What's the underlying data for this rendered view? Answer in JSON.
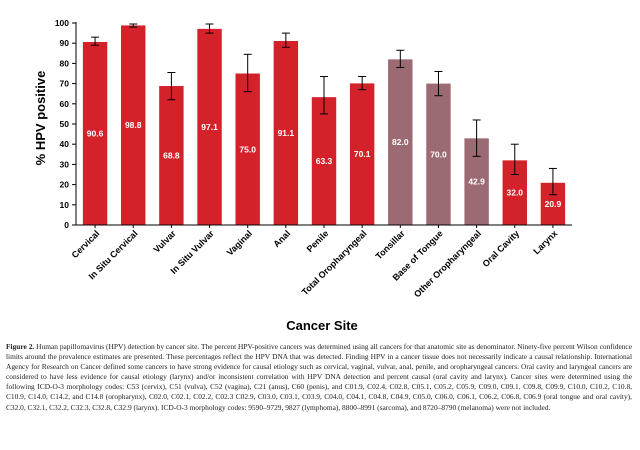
{
  "chart_data": {
    "type": "bar",
    "xlabel": "Cancer Site",
    "ylabel": "% HPV positive",
    "ylim": [
      0,
      100
    ],
    "yticks": [
      0,
      10,
      20,
      30,
      40,
      50,
      60,
      70,
      80,
      90,
      100
    ],
    "grid": false,
    "categories": [
      "Cervical",
      "In Situ Cervical",
      "Vulvar",
      "In Situ Vulvar",
      "Vaginal",
      "Anal",
      "Penile",
      "Total Oropharyngeal",
      "Tonsillar",
      "Base of Tongue",
      "Other Oropharyngeal",
      "Oral Cavity",
      "Larynx"
    ],
    "values": [
      90.6,
      98.8,
      68.8,
      97.1,
      75.0,
      91.1,
      63.3,
      70.1,
      82.0,
      70.0,
      42.9,
      32.0,
      20.9
    ],
    "value_labels": [
      "90.6",
      "98.8",
      "68.8",
      "97.1",
      "75.0",
      "91.1",
      "63.3",
      "70.1",
      "82.0",
      "70.0",
      "42.9",
      "32.0",
      "20.9"
    ],
    "ci_low": [
      89,
      98,
      62,
      95,
      66,
      88,
      55,
      67,
      78,
      64,
      34,
      25,
      15
    ],
    "ci_high": [
      93,
      99.5,
      75.5,
      99.5,
      84.5,
      95,
      73.5,
      73.5,
      86.5,
      76,
      52,
      40,
      28
    ],
    "group": [
      "red",
      "red",
      "red",
      "red",
      "red",
      "red",
      "red",
      "red",
      "mauve",
      "mauve",
      "mauve",
      "red",
      "red"
    ],
    "colors": {
      "red": "#d3222a",
      "mauve": "#9c6a73",
      "axis": "#000000"
    }
  },
  "caption": {
    "label": "Figure 2.",
    "text": "Human papillomavirus (HPV) detection by cancer site. The percent HPV-positive cancers was determined using all cancers for that anatomic site as denominator. Ninety-five percent Wilson confidence limits around the prevalence estimates are presented. These percentages reflect the HPV DNA that was detected. Finding HPV in a cancer tissue does not necessarily indicate a causal relationship. International Agency for Research on Cancer defined some cancers to have strong evidence for causal etiology such as cervical, vaginal, vulvar, anal, penile, and oropharyngeal cancers. Oral cavity and laryngeal cancers are considered to have less evidence for causal etiology (larynx) and/or inconsistent correlation with HPV DNA detection and percent causal (oral cavity and larynx). Cancer sites were determined using the following ICD-O-3 morphology codes: C53 (cervix), C51 (vulva), C52 (vagina), C21 (anus), C60 (penis), and C01.9, C02.4, C02.8, C05.1, C05.2, C05.9, C09.0, C09.1, C09.8, C09.9, C10.0, C10.2, C10.8, C10.9, C14.0, C14.2, and C14.8 (oropharynx), C02.0, C02.1, C02.2, C02.3 C02.9, C03.0, C03.1, C03.9, C04.0, C04.1, C04.8, C04.9, C05.0, C06.0, C06.1, C06.2, C06.8, C06.9 (oral tongue and oral cavity), C32.0, C32.1, C32.2, C32.3, C32.8, C32.9 (larynx). ICD-O-3 morphology codes: 9590–9729, 9827 (lymphoma), 8800–8991 (sarcoma), and 8720–8790 (melanoma) were not included."
  }
}
